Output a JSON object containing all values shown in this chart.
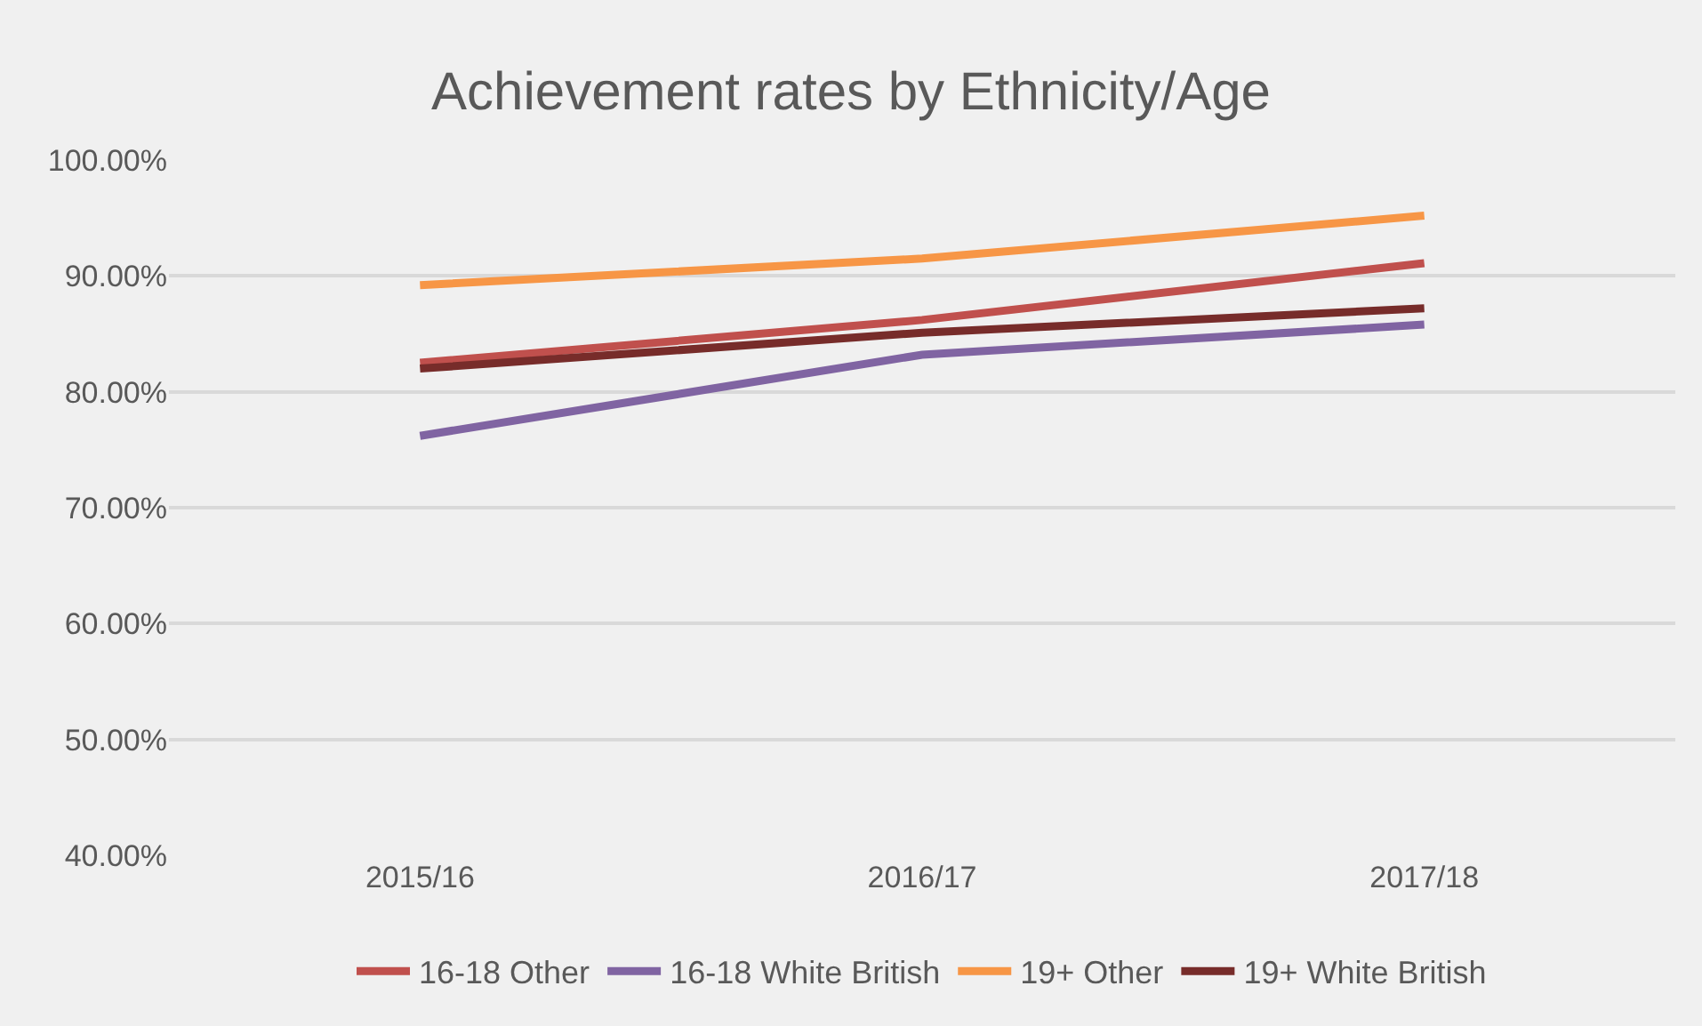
{
  "chart_data": {
    "type": "line",
    "title": "Achievement rates by Ethnicity/Age",
    "categories": [
      "2015/16",
      "2016/17",
      "2017/18"
    ],
    "series": [
      {
        "name": "16-18 Other",
        "color": "#c0504d",
        "values": [
          82.5,
          86.2,
          91.1
        ]
      },
      {
        "name": "16-18 White British",
        "color": "#8064a2",
        "values": [
          76.2,
          83.2,
          85.8
        ]
      },
      {
        "name": "19+ Other",
        "color": "#f79646",
        "values": [
          89.2,
          91.5,
          95.2
        ]
      },
      {
        "name": "19+ White British",
        "color": "#772c2a",
        "values": [
          82.0,
          85.1,
          87.2
        ]
      }
    ],
    "ylim": [
      40,
      100
    ],
    "yticks": [
      {
        "value": 40,
        "label": "40.00%"
      },
      {
        "value": 50,
        "label": "50.00%"
      },
      {
        "value": 60,
        "label": "60.00%"
      },
      {
        "value": 70,
        "label": "70.00%"
      },
      {
        "value": 80,
        "label": "80.00%"
      },
      {
        "value": 90,
        "label": "90.00%"
      },
      {
        "value": 100,
        "label": "100.00%"
      }
    ],
    "grid": "y",
    "legend": "bottom",
    "marker": "none",
    "line_style": "solid"
  }
}
